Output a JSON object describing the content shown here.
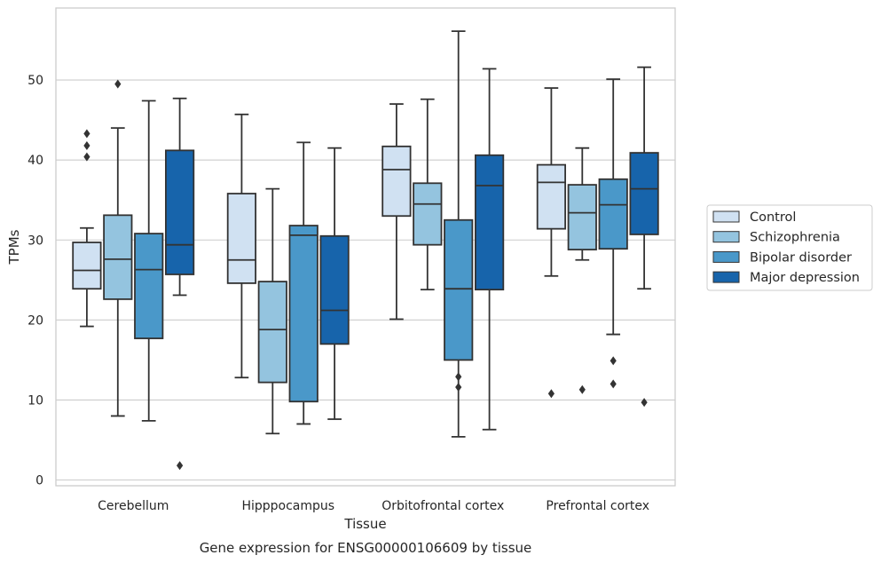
{
  "chart_data": {
    "type": "box",
    "title": "",
    "caption": "Gene expression for ENSG00000106609 by tissue",
    "xlabel": "Tissue",
    "ylabel": "TPMs",
    "ylim": [
      -0.8,
      58.5
    ],
    "yticks": [
      0,
      10,
      20,
      30,
      40,
      50
    ],
    "grid": "horizontal",
    "legend_position": "right",
    "categories": [
      "Cerebellum",
      "Hipppocampus",
      "Orbitofrontal cortex",
      "Prefrontal cortex"
    ],
    "series": [
      {
        "name": "Control",
        "color": "#d0e1f2",
        "boxes": [
          {
            "whislo": 19.2,
            "q1": 23.9,
            "med": 26.2,
            "q3": 29.7,
            "whishi": 31.5,
            "fliers": [
              43.3,
              41.8,
              40.4
            ]
          },
          {
            "whislo": 12.8,
            "q1": 24.6,
            "med": 27.5,
            "q3": 35.8,
            "whishi": 45.7,
            "fliers": []
          },
          {
            "whislo": 20.1,
            "q1": 33.0,
            "med": 38.8,
            "q3": 41.7,
            "whishi": 47.0,
            "fliers": []
          },
          {
            "whislo": 25.5,
            "q1": 31.4,
            "med": 37.2,
            "q3": 39.4,
            "whishi": 49.0,
            "fliers": [
              10.8
            ]
          }
        ]
      },
      {
        "name": "Schizophrenia",
        "color": "#94c4df",
        "boxes": [
          {
            "whislo": 8.0,
            "q1": 22.6,
            "med": 27.6,
            "q3": 33.1,
            "whishi": 44.0,
            "fliers": [
              49.5
            ]
          },
          {
            "whislo": 5.8,
            "q1": 12.2,
            "med": 18.8,
            "q3": 24.8,
            "whishi": 36.4,
            "fliers": []
          },
          {
            "whislo": 23.8,
            "q1": 29.4,
            "med": 34.5,
            "q3": 37.1,
            "whishi": 47.6,
            "fliers": []
          },
          {
            "whislo": 27.5,
            "q1": 28.8,
            "med": 33.4,
            "q3": 36.9,
            "whishi": 41.5,
            "fliers": [
              11.3
            ]
          }
        ]
      },
      {
        "name": "Bipolar disorder",
        "color": "#4a98c9",
        "boxes": [
          {
            "whislo": 7.4,
            "q1": 17.7,
            "med": 26.3,
            "q3": 30.8,
            "whishi": 47.4,
            "fliers": []
          },
          {
            "whislo": 7.0,
            "q1": 9.8,
            "med": 30.6,
            "q3": 31.8,
            "whishi": 42.2,
            "fliers": []
          },
          {
            "whislo": 5.4,
            "q1": 15.0,
            "med": 23.9,
            "q3": 32.5,
            "whishi": 56.1,
            "fliers": [
              12.9,
              11.6
            ]
          },
          {
            "whislo": 18.2,
            "q1": 28.9,
            "med": 34.4,
            "q3": 37.6,
            "whishi": 50.1,
            "fliers": [
              14.9,
              12.0
            ]
          }
        ]
      },
      {
        "name": "Major depression",
        "color": "#1764ab",
        "boxes": [
          {
            "whislo": 23.1,
            "q1": 25.7,
            "med": 29.4,
            "q3": 41.2,
            "whishi": 47.7,
            "fliers": [
              1.8
            ]
          },
          {
            "whislo": 7.6,
            "q1": 17.0,
            "med": 21.2,
            "q3": 30.5,
            "whishi": 41.5,
            "fliers": []
          },
          {
            "whislo": 6.3,
            "q1": 23.8,
            "med": 36.8,
            "q3": 40.6,
            "whishi": 51.4,
            "fliers": []
          },
          {
            "whislo": 23.9,
            "q1": 30.7,
            "med": 36.4,
            "q3": 40.9,
            "whishi": 51.6,
            "fliers": [
              9.7
            ]
          }
        ]
      }
    ]
  }
}
